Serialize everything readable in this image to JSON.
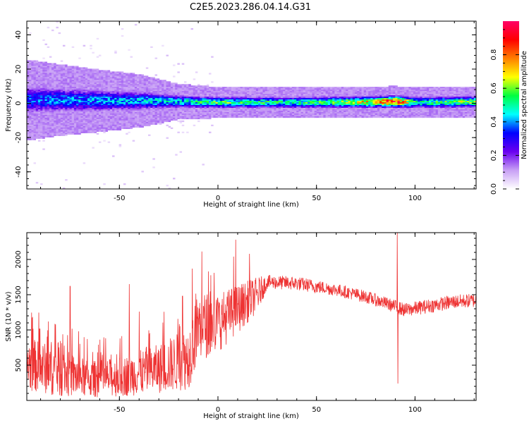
{
  "title": "C2E5.2023.286.04.14.G31",
  "chart_data": [
    {
      "type": "heatmap",
      "xlabel": "Height of straight line (km)",
      "ylabel": "Frequency (Hz)",
      "xlim": [
        -97,
        131
      ],
      "ylim": [
        -50,
        48
      ],
      "xticks": [
        -50,
        0,
        50,
        100
      ],
      "yticks": [
        -40,
        -20,
        0,
        20,
        40
      ],
      "colorbar": {
        "label": "Normalized spectral amplitude",
        "range": [
          0,
          1
        ],
        "ticks": [
          0.0,
          0.2,
          0.4,
          0.6,
          0.8
        ],
        "colormap": [
          "#ffffff",
          "#c8a0f5",
          "#6a00f0",
          "#0000ff",
          "#00ffff",
          "#00ff40",
          "#ffff00",
          "#ff7f00",
          "#ff0000",
          "#ff0066"
        ]
      },
      "ridge": [
        {
          "x": -95,
          "center": 2,
          "width": 9,
          "amp": 0.35
        },
        {
          "x": -80,
          "center": 2,
          "width": 8,
          "amp": 0.38
        },
        {
          "x": -60,
          "center": 1.5,
          "width": 7,
          "amp": 0.4
        },
        {
          "x": -40,
          "center": 1.5,
          "width": 6,
          "amp": 0.42
        },
        {
          "x": -20,
          "center": 1,
          "width": 4,
          "amp": 0.45
        },
        {
          "x": 0,
          "center": 0.5,
          "width": 3.5,
          "amp": 0.55
        },
        {
          "x": 20,
          "center": 0.5,
          "width": 3.5,
          "amp": 0.5
        },
        {
          "x": 50,
          "center": 0.5,
          "width": 3.5,
          "amp": 0.52
        },
        {
          "x": 80,
          "center": 0.8,
          "width": 3.5,
          "amp": 0.7
        },
        {
          "x": 90,
          "center": 1,
          "width": 3.5,
          "amp": 0.9
        },
        {
          "x": 100,
          "center": 0.5,
          "width": 3.5,
          "amp": 0.5
        },
        {
          "x": 131,
          "center": 0.8,
          "width": 3.5,
          "amp": 0.6
        }
      ]
    },
    {
      "type": "line",
      "xlabel": "Height of straight line (km)",
      "ylabel": "SNR (10 * v/v)",
      "xlim": [
        -97,
        131
      ],
      "ylim": [
        0,
        2380
      ],
      "xticks": [
        -50,
        0,
        50,
        100
      ],
      "yticks": [
        500,
        1000,
        1500,
        2000
      ],
      "color": "#ee3333",
      "envelope": [
        {
          "x": -97,
          "mean": 520,
          "spread": 380
        },
        {
          "x": -80,
          "mean": 400,
          "spread": 350
        },
        {
          "x": -65,
          "mean": 300,
          "spread": 260
        },
        {
          "x": -50,
          "mean": 330,
          "spread": 280
        },
        {
          "x": -30,
          "mean": 450,
          "spread": 350
        },
        {
          "x": -15,
          "mean": 600,
          "spread": 450
        },
        {
          "x": -10,
          "mean": 1050,
          "spread": 500
        },
        {
          "x": 0,
          "mean": 1100,
          "spread": 420
        },
        {
          "x": 10,
          "mean": 1300,
          "spread": 350
        },
        {
          "x": 20,
          "mean": 1500,
          "spread": 250
        },
        {
          "x": 25,
          "mean": 1680,
          "spread": 100
        },
        {
          "x": 40,
          "mean": 1660,
          "spread": 100
        },
        {
          "x": 60,
          "mean": 1570,
          "spread": 90
        },
        {
          "x": 75,
          "mean": 1470,
          "spread": 90
        },
        {
          "x": 85,
          "mean": 1380,
          "spread": 90
        },
        {
          "x": 95,
          "mean": 1280,
          "spread": 100
        },
        {
          "x": 105,
          "mean": 1330,
          "spread": 100
        },
        {
          "x": 120,
          "mean": 1400,
          "spread": 100
        },
        {
          "x": 131,
          "mean": 1420,
          "spread": 100
        }
      ],
      "spikes": [
        {
          "x": -86,
          "y": 1120
        },
        {
          "x": -75,
          "y": 1620
        },
        {
          "x": -45,
          "y": 1650
        },
        {
          "x": -40,
          "y": 1260
        },
        {
          "x": -18,
          "y": 1480
        },
        {
          "x": -13,
          "y": 1870
        },
        {
          "x": 8,
          "y": 2040
        },
        {
          "x": 9,
          "y": 2280
        },
        {
          "x": 16,
          "y": 2080
        },
        {
          "x": 91,
          "y": 2380
        },
        {
          "x": 91.3,
          "y": 240
        }
      ]
    }
  ]
}
